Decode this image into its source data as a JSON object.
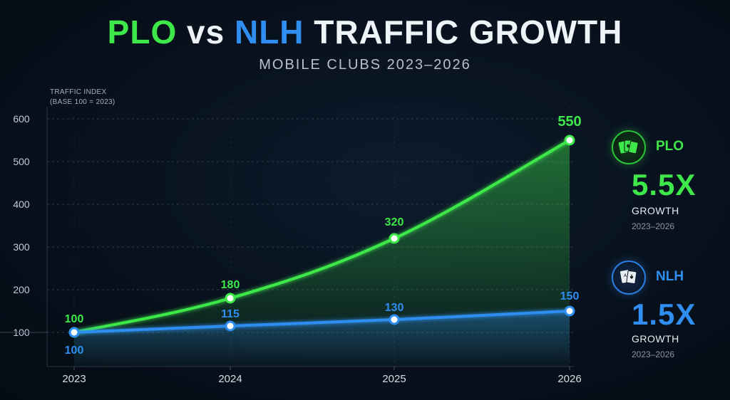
{
  "title": {
    "part1": "PLO",
    "part2": "vs",
    "part3": "NLH",
    "part4": "TRAFFIC GROWTH"
  },
  "subtitle": "MOBILE CLUBS 2023–2026",
  "colors": {
    "plo": "#3ee84a",
    "nlh": "#2f8ef0"
  },
  "chart_data": {
    "type": "line",
    "x": [
      "2023",
      "2024",
      "2025",
      "2026"
    ],
    "series": [
      {
        "name": "PLO",
        "values": [
          100,
          180,
          320,
          550
        ],
        "labels": [
          "100",
          "180",
          "320",
          "550"
        ]
      },
      {
        "name": "NLH",
        "values": [
          100,
          115,
          130,
          150
        ],
        "labels": [
          "100",
          "115",
          "130",
          "150"
        ]
      }
    ],
    "ylabel_line1": "TRAFFIC INDEX",
    "ylabel_line2": "(BASE 100 = 2023)",
    "yticks": [
      "100",
      "200",
      "300",
      "400",
      "500",
      "600"
    ],
    "ylim": [
      0,
      620
    ],
    "grid": true,
    "area_fill": true
  },
  "legend": {
    "plo": {
      "name": "PLO",
      "multiplier": "5.5X",
      "growth": "GROWTH",
      "range": "2023–2026",
      "icon": "cards-icon"
    },
    "nlh": {
      "name": "NLH",
      "multiplier": "1.5X",
      "growth": "GROWTH",
      "range": "2023–2026",
      "icon": "aces-icon"
    }
  }
}
